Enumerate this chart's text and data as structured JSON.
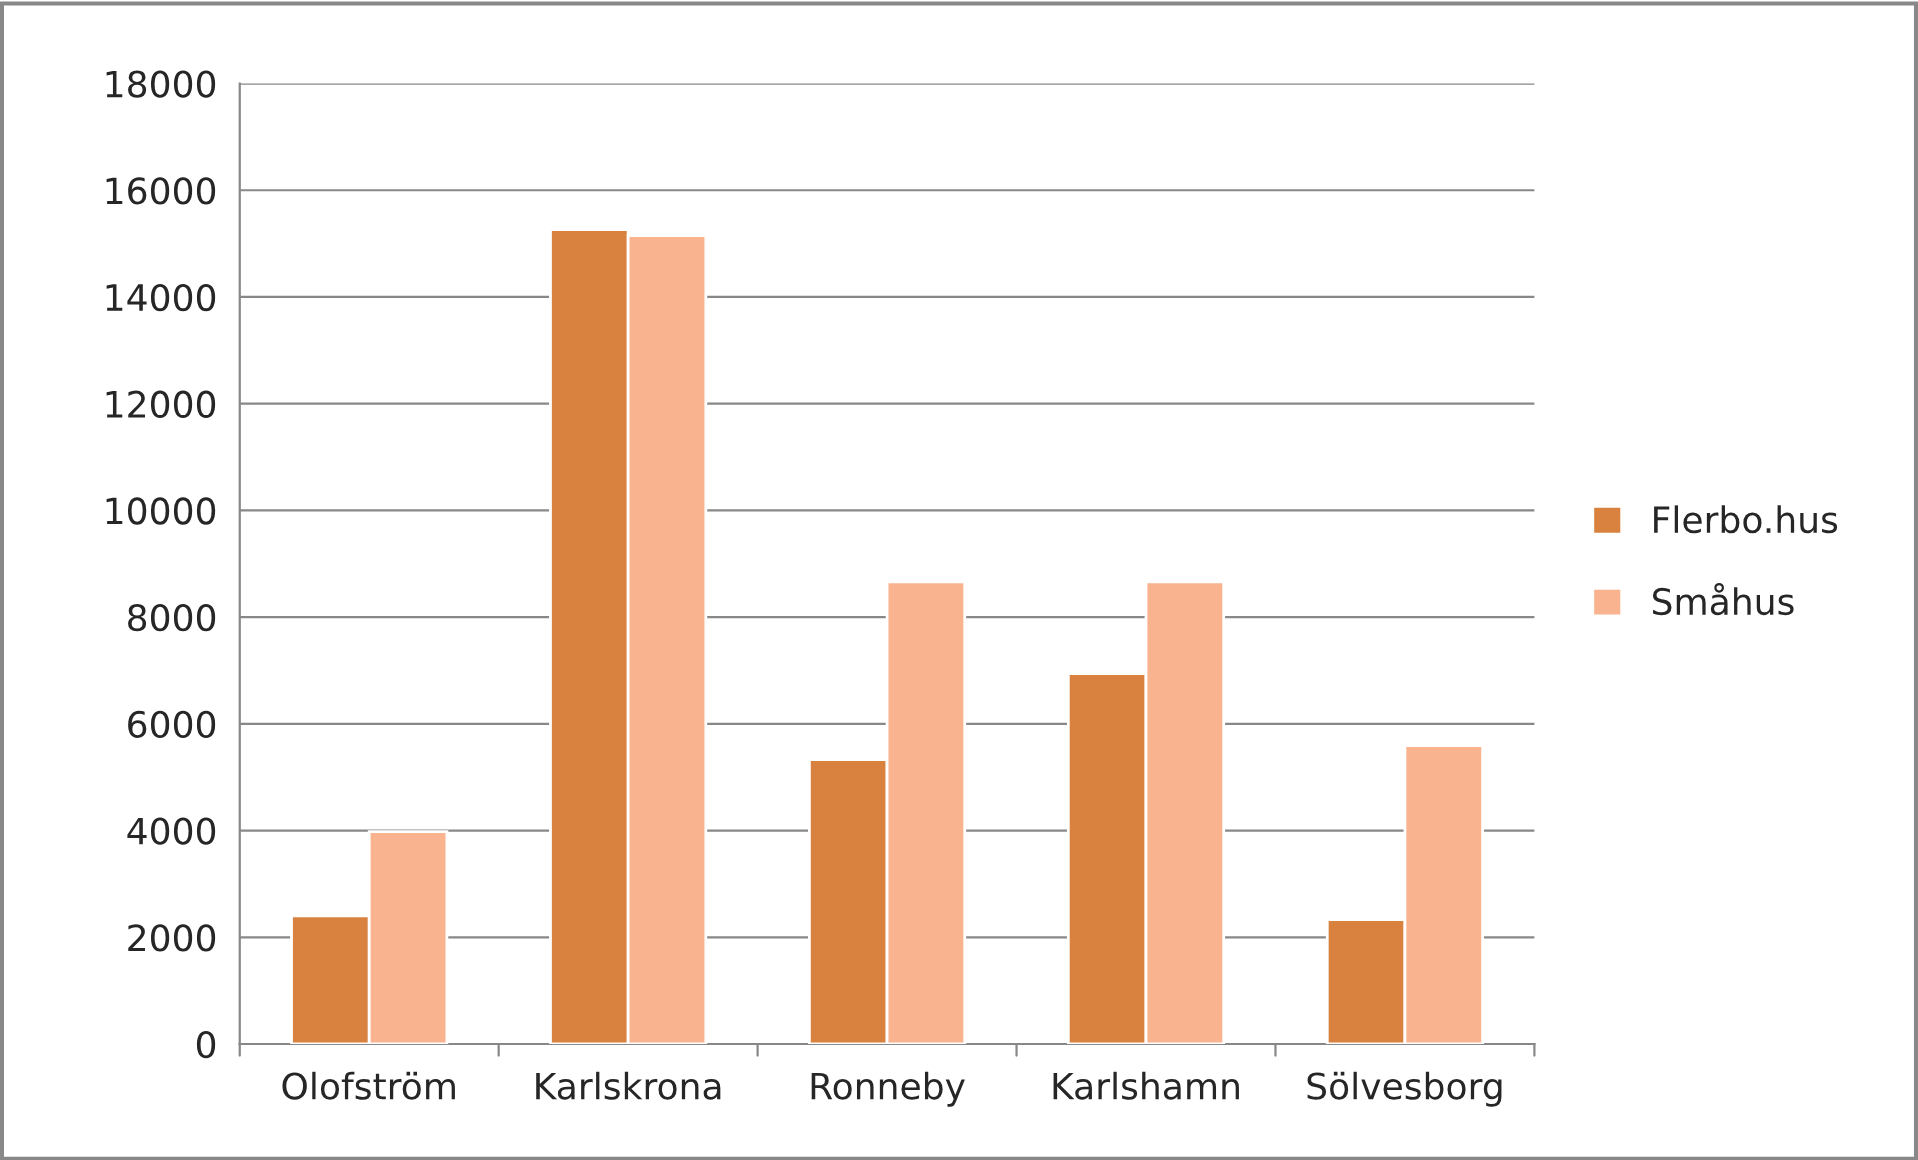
{
  "chart_data": {
    "type": "bar",
    "categories": [
      "Olofström",
      "Karlskrona",
      "Ronneby",
      "Karlshamn",
      "Sölvesborg"
    ],
    "series": [
      {
        "name": "Flerbo.hus",
        "color": "#d9823f",
        "values": [
          2400,
          15260,
          5330,
          6940,
          2330
        ]
      },
      {
        "name": "Småhus",
        "color": "#f9b38f",
        "values": [
          3980,
          15150,
          8660,
          8660,
          5590
        ]
      }
    ],
    "ylim": [
      0,
      18000
    ],
    "yticks": [
      0,
      2000,
      4000,
      6000,
      8000,
      10000,
      12000,
      14000,
      16000,
      18000
    ],
    "grid": "y",
    "legend": "right"
  }
}
